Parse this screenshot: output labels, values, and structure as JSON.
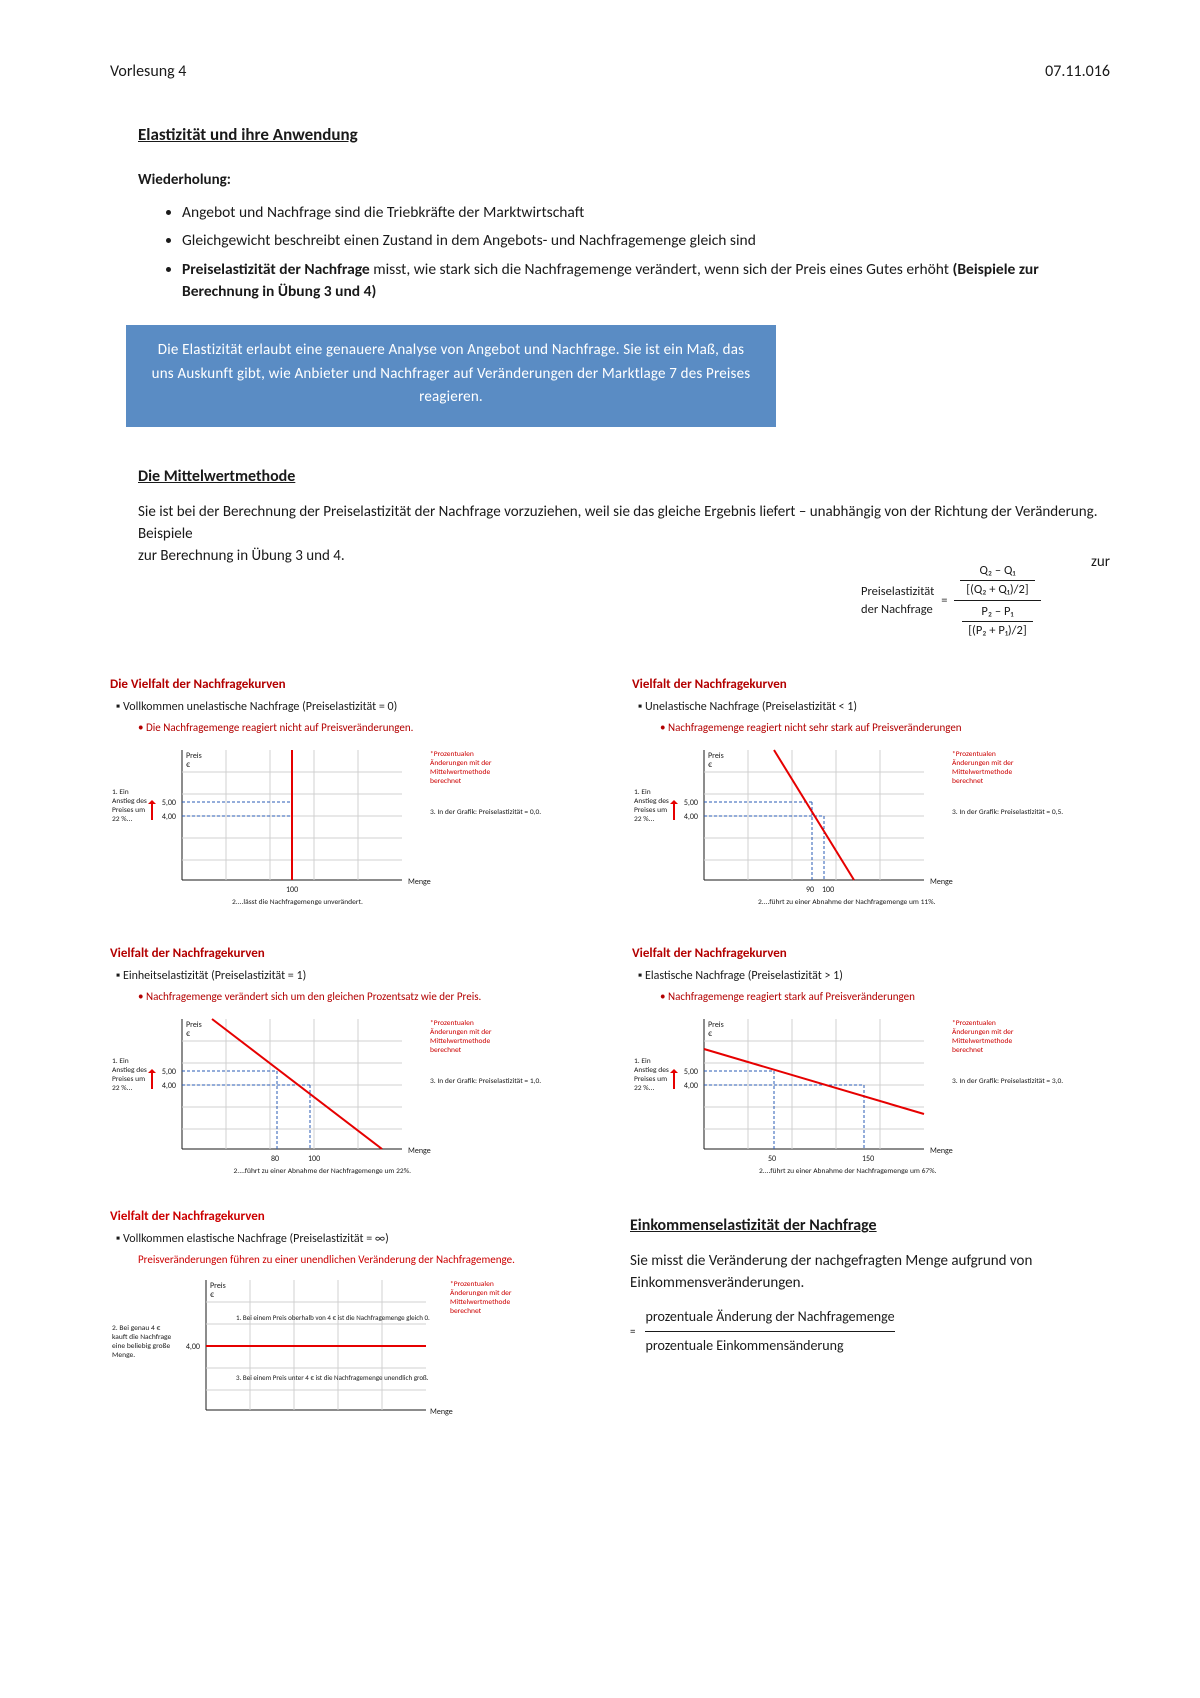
{
  "header": {
    "left": "Vorlesung 4",
    "right": "07.11.016"
  },
  "title": "Elastizität und ihre Anwendung",
  "wiederholung": {
    "label": "Wiederholung:",
    "items": [
      "Angebot und Nachfrage sind die Triebkräfte der Marktwirtschaft",
      "Gleichgewicht beschreibt einen Zustand in dem Angebots- und Nachfragemenge gleich sind",
      "Preiselastizität der Nachfrage misst, wie stark sich die Nachfragemenge verändert, wenn sich der Preis eines Gutes erhöht (Beispiele zur Berechnung in Übung 3 und 4)"
    ]
  },
  "callout": {
    "text": "Die Elastizität erlaubt eine genauere Analyse von Angebot und Nachfrage. Sie ist ein Maß, das uns Auskunft gibt, wie Anbieter und Nachfrager auf Veränderungen der Marktlage 7 des Preises reagieren.",
    "bg": "#5a8cc4",
    "color": "#ffffff"
  },
  "mittel": {
    "title": "Die Mittelwertmethode",
    "text_a": "Sie ist bei der Berechnung der Preiselastizität der Nachfrage vorzuziehen, weil sie das gleiche Ergebnis liefert – unabhängig von der Richtung der Veränderung. Beispiele",
    "text_b": "zur Berechnung in Übung 3 und 4.",
    "formula": {
      "lhs_a": "Preiselastizität",
      "lhs_b": "der Nachfrage",
      "eq": "=",
      "num_top": "Q₂ – Q₁",
      "num_bot": "[(Q₂ + Q₁)/2]",
      "den_top": "P₂ – P₁",
      "den_bot": "[(P₂ + P₁)/2]"
    }
  },
  "colors": {
    "title_red": "#b30000",
    "line_red": "#e60000",
    "grid": "#d0d0d0",
    "axis": "#1a1a1a",
    "blue_dash": "#2a5bb5"
  },
  "chart_common": {
    "y_axis": "Preis €",
    "x_axis": "Menge",
    "price_a": "5,00",
    "price_b": "4,00",
    "left_anno_a": "1. Ein",
    "left_anno_b": "Anstieg des",
    "left_anno_c": "Preises um",
    "left_anno_d": "22 %...",
    "right_anno_a": "*Prozentualen",
    "right_anno_b": "Änderungen mit der",
    "right_anno_c": "Mittelwertmethode",
    "right_anno_d": "berechnet"
  },
  "charts": [
    {
      "section_title": "Die Vielfalt der Nachfragekurven",
      "sub": "Vollkommen unelastische Nachfrage (Preiselastizität = 0)",
      "sub2": "Die Nachfragemenge reagiert nicht auf Preisveränderungen.",
      "result": "3. In der Grafik: Preiselastizität = 0,0.",
      "q_a": "100",
      "q_b": "",
      "bottom": "2....lässt die Nachfragemenge unverändert.",
      "shape": "vertical"
    },
    {
      "section_title": "Vielfalt der Nachfragekurven",
      "sub": "Unelastische Nachfrage (Preiselastizität < 1)",
      "sub2": "Nachfragemenge reagiert nicht sehr stark auf Preisveränderungen",
      "result": "3. In der Grafik: Preiselastizität = 0,5.",
      "q_a": "90",
      "q_b": "100",
      "bottom": "2....führt zu einer Abnahme der Nachfragemenge um 11%.",
      "shape": "steep"
    },
    {
      "section_title": "Vielfalt der Nachfragekurven",
      "sub": "Einheitselastizität (Preiselastizität = 1)",
      "sub2": "Nachfragemenge verändert sich um den gleichen Prozentsatz wie der Preis.",
      "result": "3. In der Grafik: Preiselastizität = 1,0.",
      "q_a": "80",
      "q_b": "100",
      "bottom": "2....führt zu einer Abnahme der Nachfragemenge um 22%.",
      "shape": "medium"
    },
    {
      "section_title": "Vielfalt der Nachfragekurven",
      "sub": "Elastische Nachfrage (Preiselastizität > 1)",
      "sub2": "Nachfragemenge reagiert stark auf Preisveränderungen",
      "result": "3. In der Grafik: Preiselastizität = 3,0.",
      "q_a": "50",
      "q_b": "150",
      "bottom": "2....führt zu einer Abnahme der Nachfragemenge um 67%.",
      "shape": "flat"
    }
  ],
  "chart5": {
    "section_title": "Vielfalt der Nachfragekurven",
    "sub": "Vollkommen elastische Nachfrage (Preiselastizität = ∞)",
    "sub2": "Preisveränderungen führen zu einer unendlichen Veränderung der Nachfragemenge.",
    "left_anno_a": "2. Bei genau 4 €",
    "left_anno_b": "kauft die Nachfrage",
    "left_anno_c": "eine beliebig große",
    "left_anno_d": "Menge.",
    "price": "4,00",
    "inner_a": "1. Bei einem Preis oberhalb von 4 € ist die Nachfragemenge gleich 0.",
    "inner_b": "3. Bei einem Preis unter 4 € ist die Nachfragemenge unendlich groß.",
    "x_axis": "Menge"
  },
  "einkommen": {
    "title": "Einkommenselastizität der Nachfrage",
    "text": "Sie misst die Veränderung der nachgefragten Menge aufgrund von Einkommensveränderungen.",
    "frac_top": "prozentuale Änderung der Nachfragemenge",
    "frac_bot": "prozentuale Einkommensänderung"
  }
}
